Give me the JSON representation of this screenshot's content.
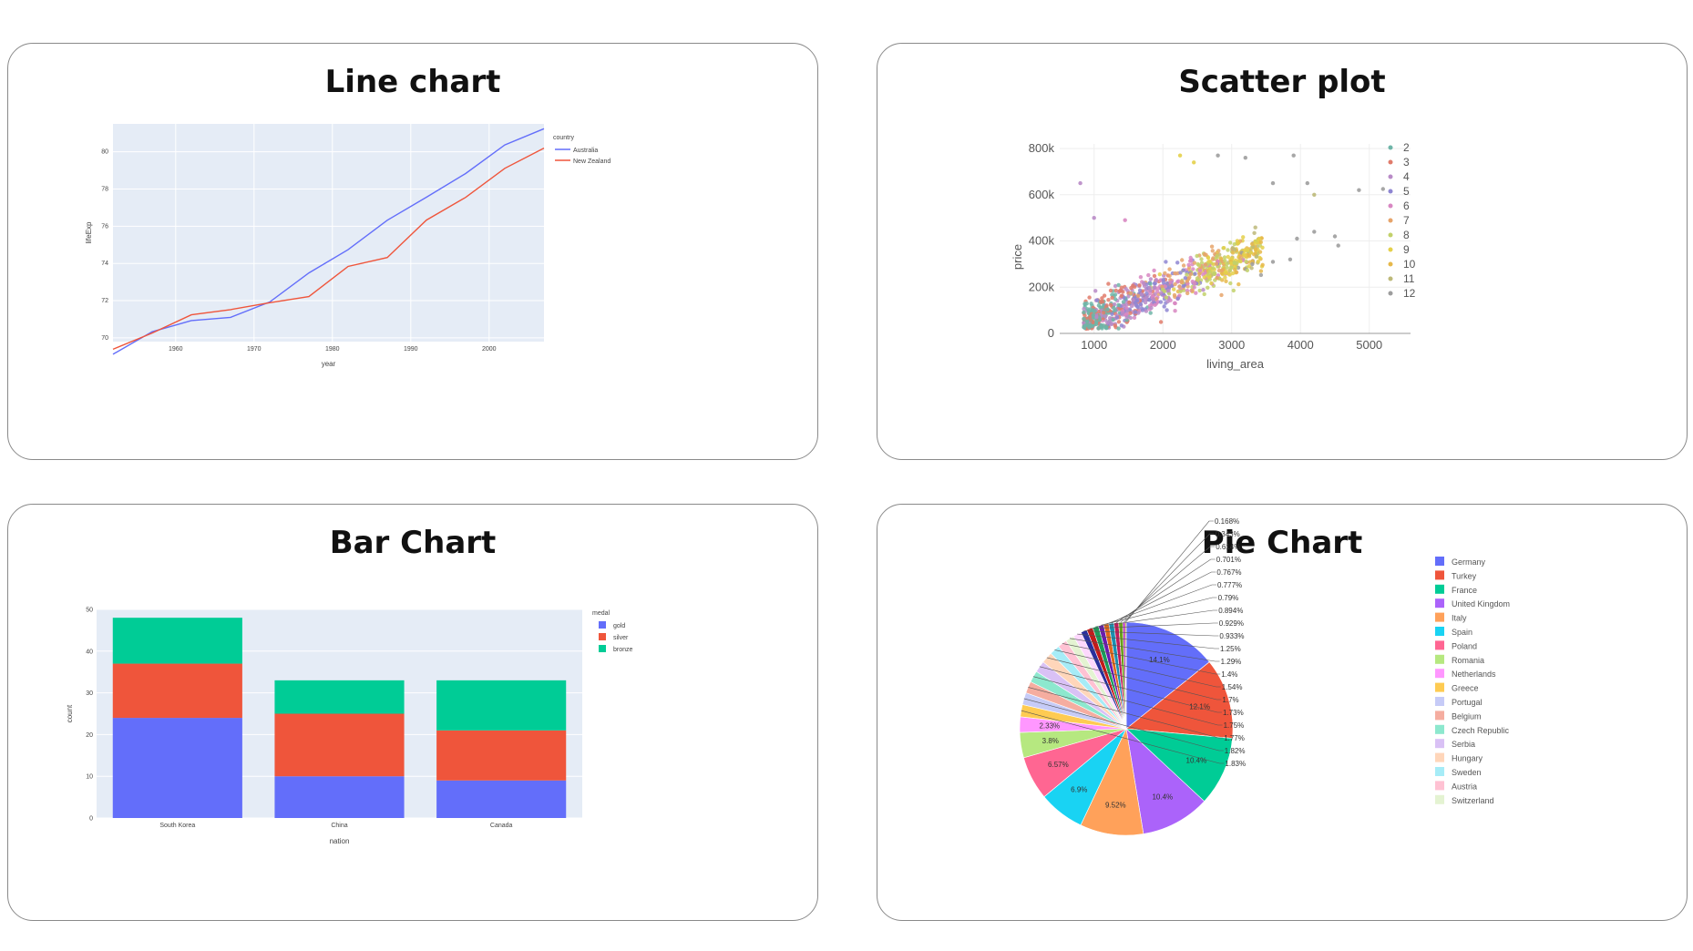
{
  "cards": {
    "line": {
      "title": "Line chart"
    },
    "scatter": {
      "title": "Scatter plot"
    },
    "bar": {
      "title": "Bar Chart"
    },
    "pie": {
      "title": "Pie Chart"
    }
  },
  "chart_data": [
    {
      "type": "line",
      "title": "Line chart",
      "xlabel": "year",
      "ylabel": "lifeExp",
      "legend_title": "country",
      "legend_position": "top-right",
      "xlim": [
        1952,
        2007
      ],
      "ylim": [
        69.8,
        81.5
      ],
      "x_ticks": [
        1960,
        1970,
        1980,
        1990,
        2000
      ],
      "y_ticks": [
        70,
        72,
        74,
        76,
        78,
        80
      ],
      "y_tick_labels": [
        "70",
        "72",
        "74",
        "76",
        "78",
        "80"
      ],
      "x": [
        1952,
        1957,
        1962,
        1967,
        1972,
        1977,
        1982,
        1987,
        1992,
        1997,
        2002,
        2007
      ],
      "series": [
        {
          "name": "Australia",
          "color": "#636efa",
          "values": [
            69.12,
            70.33,
            70.93,
            71.1,
            71.93,
            73.49,
            74.74,
            76.32,
            77.56,
            78.83,
            80.37,
            81.24
          ]
        },
        {
          "name": "New Zealand",
          "color": "#ef553b",
          "values": [
            69.39,
            70.26,
            71.24,
            71.52,
            71.89,
            72.22,
            73.84,
            74.32,
            76.33,
            77.55,
            79.11,
            80.2
          ]
        }
      ],
      "grid": true,
      "plot_bg": "#e5ecf6"
    },
    {
      "type": "scatter",
      "title": "Scatter plot",
      "xlabel": "living_area",
      "ylabel": "price",
      "xlim": [
        500,
        5600
      ],
      "ylim": [
        0,
        820000
      ],
      "x_ticks": [
        1000,
        2000,
        3000,
        4000,
        5000
      ],
      "y_ticks": [
        0,
        200000,
        400000,
        600000,
        800000
      ],
      "y_tick_labels": [
        "0",
        "200k",
        "400k",
        "600k",
        "800k"
      ],
      "legend_position": "right",
      "series": [
        {
          "name": "2",
          "color": "#6eb5a8"
        },
        {
          "name": "3",
          "color": "#e07b6b"
        },
        {
          "name": "4",
          "color": "#b98bc7"
        },
        {
          "name": "5",
          "color": "#8e86d2"
        },
        {
          "name": "6",
          "color": "#d887c2"
        },
        {
          "name": "7",
          "color": "#e6a46b"
        },
        {
          "name": "8",
          "color": "#c2d16a"
        },
        {
          "name": "9",
          "color": "#e4d04a"
        },
        {
          "name": "10",
          "color": "#e6b84a"
        },
        {
          "name": "11",
          "color": "#bdb979"
        },
        {
          "name": "12",
          "color": "#9d9d9d"
        }
      ],
      "points_note": "dense cloud, living_area 800-3500, price 50k-500k, positive correlation",
      "outliers": [
        {
          "x": 800,
          "y": 650000,
          "s": 4
        },
        {
          "x": 2250,
          "y": 770000,
          "s": 9
        },
        {
          "x": 2450,
          "y": 740000,
          "s": 9
        },
        {
          "x": 2800,
          "y": 770000,
          "s": 12
        },
        {
          "x": 3200,
          "y": 760000,
          "s": 12
        },
        {
          "x": 3900,
          "y": 770000,
          "s": 12
        },
        {
          "x": 3600,
          "y": 650000,
          "s": 12
        },
        {
          "x": 4100,
          "y": 650000,
          "s": 12
        },
        {
          "x": 4200,
          "y": 600000,
          "s": 11
        },
        {
          "x": 4850,
          "y": 620000,
          "s": 12
        },
        {
          "x": 5200,
          "y": 625000,
          "s": 12
        },
        {
          "x": 4200,
          "y": 440000,
          "s": 12
        },
        {
          "x": 4500,
          "y": 420000,
          "s": 12
        },
        {
          "x": 4550,
          "y": 380000,
          "s": 12
        },
        {
          "x": 3950,
          "y": 410000,
          "s": 12
        },
        {
          "x": 3300,
          "y": 300000,
          "s": 12
        },
        {
          "x": 3600,
          "y": 310000,
          "s": 12
        },
        {
          "x": 3850,
          "y": 320000,
          "s": 12
        },
        {
          "x": 1000,
          "y": 500000,
          "s": 4
        },
        {
          "x": 1450,
          "y": 490000,
          "s": 6
        }
      ],
      "plot_bg": "#ffffff"
    },
    {
      "type": "bar",
      "barmode": "stack",
      "title": "Bar Chart",
      "xlabel": "nation",
      "ylabel": "count",
      "legend_title": "medal",
      "legend_position": "top-right",
      "categories": [
        "South Korea",
        "China",
        "Canada"
      ],
      "ylim": [
        0,
        50
      ],
      "y_ticks": [
        0,
        10,
        20,
        30,
        40,
        50
      ],
      "series": [
        {
          "name": "gold",
          "color": "#636efa",
          "values": [
            24,
            10,
            9
          ]
        },
        {
          "name": "silver",
          "color": "#ef553b",
          "values": [
            13,
            15,
            12
          ]
        },
        {
          "name": "bronze",
          "color": "#00cc96",
          "values": [
            11,
            8,
            12
          ]
        }
      ],
      "plot_bg": "#e5ecf6"
    },
    {
      "type": "pie",
      "title": "Pie Chart",
      "legend_position": "right",
      "slices": [
        {
          "name": "Germany",
          "value": 14.1,
          "label": "14.1%",
          "color": "#636efa"
        },
        {
          "name": "Turkey",
          "value": 12.1,
          "label": "12.1%",
          "color": "#ef553b"
        },
        {
          "name": "France",
          "value": 10.4,
          "label": "10.4%",
          "color": "#00cc96"
        },
        {
          "name": "United Kingdom",
          "value": 10.4,
          "label": "10.4%",
          "color": "#ab63fa"
        },
        {
          "name": "Italy",
          "value": 9.52,
          "label": "9.52%",
          "color": "#ffa15a"
        },
        {
          "name": "Spain",
          "value": 6.9,
          "label": "6.9%",
          "color": "#19d3f3"
        },
        {
          "name": "Poland",
          "value": 6.57,
          "label": "6.57%",
          "color": "#ff6692"
        },
        {
          "name": "Romania",
          "value": 3.8,
          "label": "3.8%",
          "color": "#b6e880"
        },
        {
          "name": "Netherlands",
          "value": 2.33,
          "label": "2.33%",
          "color": "#ff97ff"
        },
        {
          "name": "Greece",
          "value": 1.83,
          "label": "1.83%",
          "color": "#fecb52"
        },
        {
          "name": "Portugal",
          "value": 1.82,
          "label": "1.82%",
          "color": "#c6cbf7"
        },
        {
          "name": "Belgium",
          "value": 1.77,
          "label": "1.77%",
          "color": "#f5ada0"
        },
        {
          "name": "Czech Republic",
          "value": 1.75,
          "label": "1.75%",
          "color": "#8de8ce"
        },
        {
          "name": "Serbia",
          "value": 1.73,
          "label": "1.73%",
          "color": "#d9c1f5"
        },
        {
          "name": "Hungary",
          "value": 1.7,
          "label": "1.7%",
          "color": "#ffd6ba"
        },
        {
          "name": "Sweden",
          "value": 1.54,
          "label": "1.54%",
          "color": "#a6ecf7"
        },
        {
          "name": "Austria",
          "value": 1.4,
          "label": "1.4%",
          "color": "#ffc2d3"
        },
        {
          "name": "Switzerland",
          "value": 1.29,
          "label": "1.29%",
          "color": "#e4f3d2"
        },
        {
          "name": "",
          "value": 1.25,
          "label": "1.25%",
          "color": "#fdd8fd"
        },
        {
          "name": "",
          "value": 0.933,
          "label": "0.933%",
          "color": "#2a2f9c"
        },
        {
          "name": "",
          "value": 0.929,
          "label": "0.929%",
          "color": "#c31a1a"
        },
        {
          "name": "",
          "value": 0.894,
          "label": "0.894%",
          "color": "#1a9c5a"
        },
        {
          "name": "",
          "value": 0.79,
          "label": "0.79%",
          "color": "#6a1ab0"
        },
        {
          "name": "",
          "value": 0.777,
          "label": "0.777%",
          "color": "#e0661a"
        },
        {
          "name": "",
          "value": 0.767,
          "label": "0.767%",
          "color": "#1a8fb0"
        },
        {
          "name": "",
          "value": 0.701,
          "label": "0.701%",
          "color": "#c21a5a"
        },
        {
          "name": "",
          "value": 0.614,
          "label": "0.614%",
          "color": "#6aa01a"
        },
        {
          "name": "",
          "value": 0.343,
          "label": "0.343%",
          "color": "#b01ab0"
        },
        {
          "name": "",
          "value": 0.168,
          "label": "0.168%",
          "color": "#b0901a"
        }
      ]
    }
  ]
}
